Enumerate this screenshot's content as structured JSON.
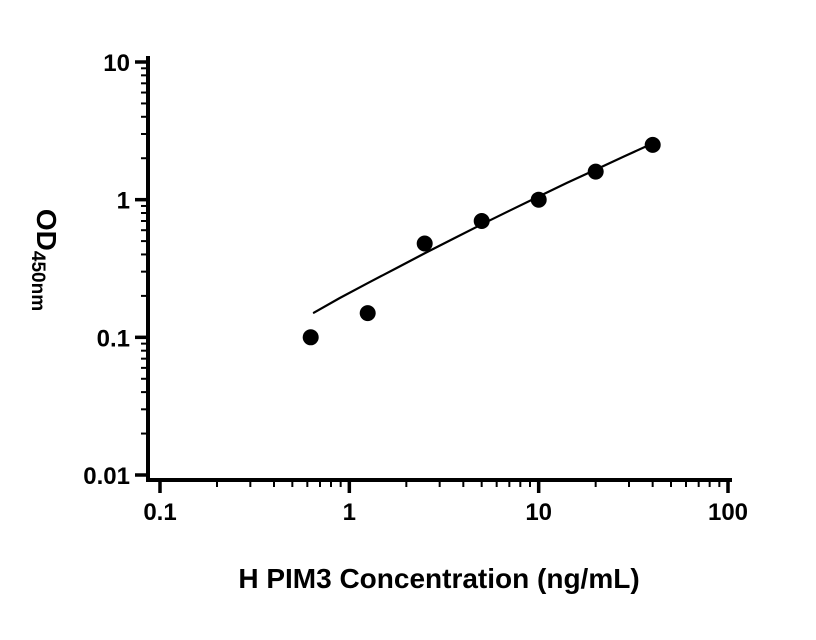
{
  "figure": {
    "background": "#ffffff"
  },
  "chart_data": {
    "type": "scatter",
    "title": "",
    "xlabel": "H PIM3 Concentration (ng/mL)",
    "ylabel_main": "OD",
    "ylabel_sub": "450nm",
    "x_scale": "log",
    "y_scale": "log",
    "xlim": [
      0.1,
      100
    ],
    "ylim": [
      0.01,
      10
    ],
    "x_ticks": [
      0.1,
      1,
      10,
      100
    ],
    "x_tick_labels": [
      "0.1",
      "1",
      "10",
      "100"
    ],
    "y_ticks": [
      0.01,
      0.1,
      1,
      10
    ],
    "y_tick_labels": [
      "0.01",
      "0.1",
      "1",
      "10"
    ],
    "grid": false,
    "legend": false,
    "axis_color": "#000000",
    "series": [
      {
        "marker": "circle",
        "color": "#000000",
        "x": [
          0.625,
          1.25,
          2.5,
          5,
          10,
          20,
          40
        ],
        "y": [
          0.1,
          0.15,
          0.48,
          0.7,
          1.0,
          1.6,
          2.5
        ]
      }
    ],
    "fit_curve": {
      "color": "#000000",
      "x": [
        0.65,
        0.89,
        1.26,
        1.78,
        2.51,
        3.55,
        5.01,
        7.08,
        10,
        14.1,
        20,
        28.2,
        40.7
      ],
      "y": [
        0.151,
        0.193,
        0.249,
        0.319,
        0.409,
        0.521,
        0.662,
        0.837,
        1.054,
        1.323,
        1.654,
        2.059,
        2.589
      ]
    }
  }
}
